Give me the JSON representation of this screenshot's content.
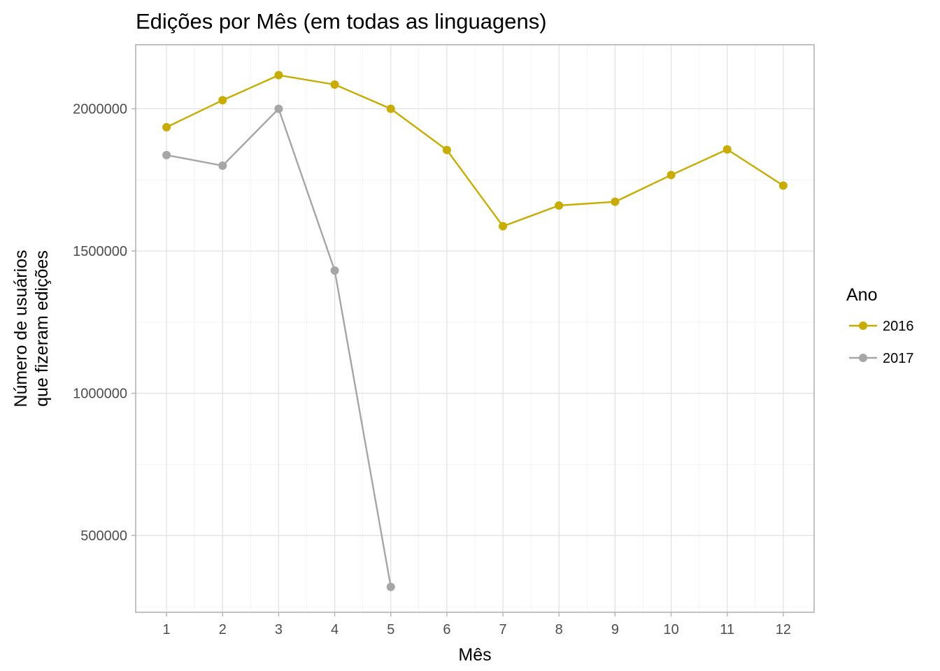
{
  "chart_data": {
    "type": "line",
    "title": "Edições por Mês (em todas as linguagens)",
    "xlabel": "Mês",
    "ylabel_lines": [
      "Número de usuários",
      "que fizeram edições"
    ],
    "x": [
      1,
      2,
      3,
      4,
      5,
      6,
      7,
      8,
      9,
      10,
      11,
      12
    ],
    "x_tick_labels": [
      "1",
      "2",
      "3",
      "4",
      "5",
      "6",
      "7",
      "8",
      "9",
      "10",
      "11",
      "12"
    ],
    "xlim": [
      0.45,
      12.55
    ],
    "ylim": [
      230000,
      2225000
    ],
    "y_ticks": [
      500000,
      1000000,
      1500000,
      2000000
    ],
    "y_tick_labels": [
      "500000",
      "1000000",
      "1500000",
      "2000000"
    ],
    "grid": true,
    "legend": {
      "title": "Ano",
      "position": "right"
    },
    "series": [
      {
        "name": "2016",
        "color": "#c9ac00",
        "x": [
          1,
          2,
          3,
          4,
          5,
          6,
          7,
          8,
          9,
          10,
          11,
          12
        ],
        "values": [
          1935000,
          2030000,
          2118000,
          2085000,
          2000000,
          1855000,
          1587000,
          1660000,
          1673000,
          1767000,
          1857000,
          1730000
        ]
      },
      {
        "name": "2017",
        "color": "#a6a6a6",
        "x": [
          1,
          2,
          3,
          4,
          5
        ],
        "values": [
          1837000,
          1800000,
          2000000,
          1431000,
          319000
        ]
      }
    ]
  }
}
